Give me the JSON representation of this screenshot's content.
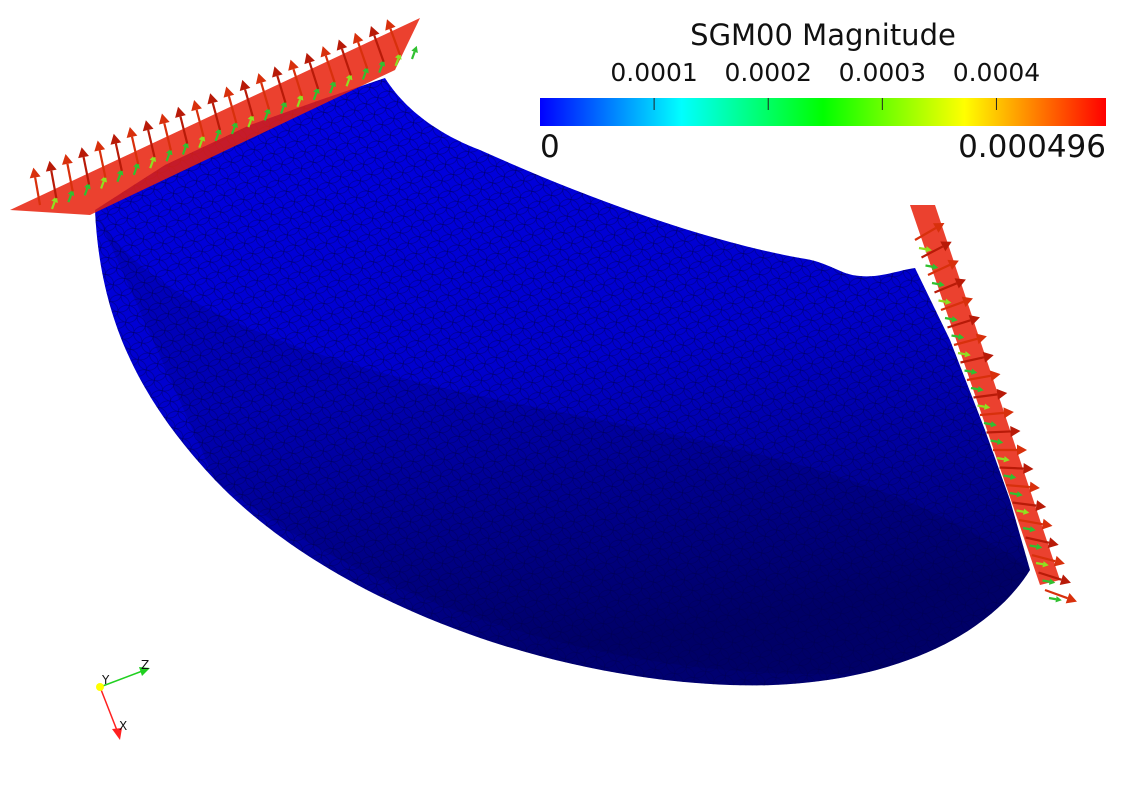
{
  "colorbar": {
    "title": "SGM00 Magnitude",
    "ticks": [
      {
        "label": "0.0001",
        "value": 0.0001
      },
      {
        "label": "0.0002",
        "value": 0.0002
      },
      {
        "label": "0.0003",
        "value": 0.0003
      },
      {
        "label": "0.0004",
        "value": 0.0004
      }
    ],
    "min_label": "0",
    "max_label": "0.000496",
    "range": [
      0,
      0.000496
    ],
    "colors": [
      "#0000ff",
      "#00ffff",
      "#00ff00",
      "#ffff00",
      "#ff0000"
    ]
  },
  "axes": {
    "y_label": "Y",
    "z_label": "Z",
    "x_label": "X",
    "colors": {
      "x": "#ff2020",
      "y": "#ffff00",
      "z": "#20d020"
    }
  },
  "surface_color": "#0000cc"
}
